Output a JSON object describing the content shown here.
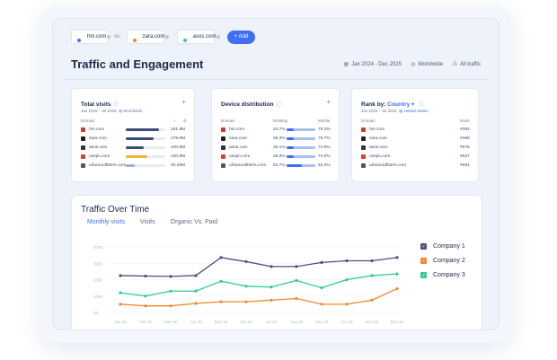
{
  "compare": {
    "sites": [
      {
        "name": "hm.com",
        "color": "#3e6ff4"
      },
      {
        "name": "zara.com",
        "color": "#f08a2c"
      },
      {
        "name": "asos.com",
        "color": "#2ecc8f"
      }
    ],
    "vs_label": "vs.",
    "remove_glyph": "⊗",
    "add_label": "+ Add"
  },
  "header": {
    "title": "Traffic and Engagement",
    "date_range": "Jan 2024 - Dec 2025",
    "region": "Worldwide",
    "traffic": "All traffic"
  },
  "total_visits": {
    "title": "Total visits",
    "period": "Jan 2025 - Jul 2025",
    "region": "Worldwide",
    "col_domain": "Domain",
    "rows": [
      {
        "domain": "hm.com",
        "value": "161.9M",
        "pct": 0.85,
        "color": "#3d4a7a",
        "fav": "#d2382f"
      },
      {
        "domain": "zara.com",
        "value": "179.9M",
        "pct": 0.7,
        "color": "#3d4a7a",
        "fav": "#222222"
      },
      {
        "domain": "asos.com",
        "value": "100.9M",
        "pct": 0.45,
        "color": "#3d4a7a",
        "fav": "#333333"
      },
      {
        "domain": "uniqlo.com",
        "value": "130.9M",
        "pct": 0.55,
        "color": "#f2b13b",
        "fav": "#e53935"
      },
      {
        "domain": "urbanoutfitters.com",
        "value": "40.29M",
        "pct": 0.22,
        "color": "#9ab0d8",
        "fav": "#555555"
      }
    ]
  },
  "device": {
    "title": "Device distribution",
    "col_domain": "Domain",
    "col_desktop": "Desktop",
    "col_mobile": "Mobile",
    "rows": [
      {
        "domain": "hm.com",
        "desktop": "24.7%",
        "mobile": "75.3%",
        "pct": 0.247,
        "fav": "#d2382f"
      },
      {
        "domain": "zara.com",
        "desktop": "26.3%",
        "mobile": "73.7%",
        "pct": 0.263,
        "fav": "#222222"
      },
      {
        "domain": "asos.com",
        "desktop": "25.1%",
        "mobile": "74.9%",
        "pct": 0.251,
        "fav": "#333333"
      },
      {
        "domain": "uniqlo.com",
        "desktop": "26.0%",
        "mobile": "74.0%",
        "pct": 0.26,
        "fav": "#e53935"
      },
      {
        "domain": "urbanoutfitters.com",
        "desktop": "53.7%",
        "mobile": "46.3%",
        "pct": 0.537,
        "fav": "#555555"
      }
    ]
  },
  "rank": {
    "title_prefix": "Rank by:",
    "title_value": "Country",
    "period": "Jan 2025 - Jul 2025",
    "country": "United States",
    "col_domain": "Domain",
    "col_rank": "Rank",
    "rows": [
      {
        "domain": "hm.com",
        "rank": "#393",
        "fav": "#d2382f"
      },
      {
        "domain": "zara.com",
        "rank": "#489",
        "fav": "#222222"
      },
      {
        "domain": "asos.com",
        "rank": "#678",
        "fav": "#333333"
      },
      {
        "domain": "uniqlo.com",
        "rank": "#527",
        "fav": "#e53935"
      },
      {
        "domain": "urbanoutfitters.com",
        "rank": "#591",
        "fav": "#555555"
      }
    ]
  },
  "traffic_over_time": {
    "title": "Traffic Over Time",
    "tabs": [
      "Monthly visits",
      "Visits",
      "Organic Vs. Paid"
    ]
  },
  "chart_data": {
    "type": "line",
    "x": [
      "Jan 25",
      "Feb 25",
      "Mar 25",
      "Apr 25",
      "May 25",
      "Jun 25",
      "Jul 25",
      "Aug 25",
      "Sep 25",
      "Oct 25",
      "Nov 25",
      "Dec 25"
    ],
    "yticks": [
      "400K",
      "300K",
      "200K",
      "100K",
      "0K"
    ],
    "ylim": [
      0,
      400
    ],
    "series": [
      {
        "name": "Company 1",
        "color": "#4a5180",
        "values": [
          225,
          222,
          220,
          225,
          335,
          310,
          280,
          280,
          305,
          315,
          315,
          335
        ]
      },
      {
        "name": "Company 2",
        "color": "#f08a2c",
        "values": [
          50,
          40,
          40,
          55,
          65,
          65,
          75,
          85,
          50,
          50,
          75,
          145
        ]
      },
      {
        "name": "Company 3",
        "color": "#2ecc8f",
        "values": [
          120,
          100,
          130,
          130,
          190,
          160,
          155,
          195,
          150,
          200,
          225,
          235
        ]
      }
    ]
  }
}
